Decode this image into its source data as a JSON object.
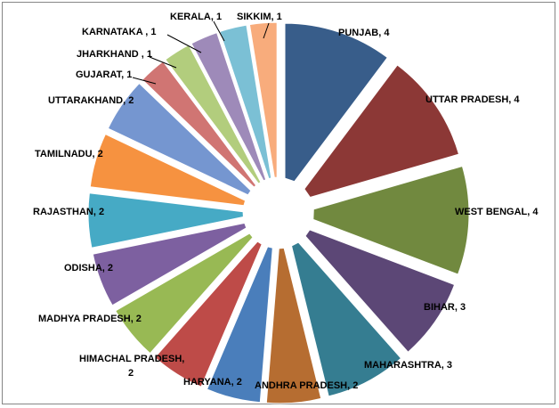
{
  "chart_data": {
    "type": "pie",
    "title": "",
    "legend": "none",
    "slices": [
      {
        "label": "PUNJAB, 4",
        "category": "PUNJAB",
        "value": 4,
        "color": "#385D8A"
      },
      {
        "label": "UTTAR PRADESH, 4",
        "category": "UTTAR PRADESH",
        "value": 4,
        "color": "#8C3836"
      },
      {
        "label": "WEST BENGAL, 4",
        "category": "WEST BENGAL",
        "value": 4,
        "color": "#71893F"
      },
      {
        "label": "BIHAR, 3",
        "category": "BIHAR",
        "value": 3,
        "color": "#5C4776"
      },
      {
        "label": "MAHARASHTRA, 3",
        "category": "MAHARASHTRA",
        "value": 3,
        "color": "#357D91"
      },
      {
        "label": "ANDHRA PRADESH, 2",
        "category": "ANDHRA PRADESH",
        "value": 2,
        "color": "#B66D31"
      },
      {
        "label": "HARYANA, 2",
        "category": "HARYANA",
        "value": 2,
        "color": "#4A7EBB"
      },
      {
        "label": "HIMACHAL PRADESH, 2",
        "category": "HIMACHAL PRADESH",
        "value": 2,
        "color": "#BE4B48"
      },
      {
        "label": "MADHYA PRADESH, 2",
        "category": "MADHYA PRADESH",
        "value": 2,
        "color": "#98B954"
      },
      {
        "label": "ODISHA, 2",
        "category": "ODISHA",
        "value": 2,
        "color": "#7D60A0"
      },
      {
        "label": "RAJASTHAN, 2",
        "category": "RAJASTHAN",
        "value": 2,
        "color": "#46AAC5"
      },
      {
        "label": "TAMILNADU, 2",
        "category": "TAMILNADU",
        "value": 2,
        "color": "#F69240"
      },
      {
        "label": "UTTARAKHAND, 2",
        "category": "UTTARAKHAND",
        "value": 2,
        "color": "#7596D0"
      },
      {
        "label": "GUJARAT, 1",
        "category": "GUJARAT",
        "value": 1,
        "color": "#D07573"
      },
      {
        "label": "JHARKHAND , 1",
        "category": "JHARKHAND",
        "value": 1,
        "color": "#B2CD7D"
      },
      {
        "label": "KARNATAKA , 1",
        "category": "KARNATAKA",
        "value": 1,
        "color": "#9E8AB9"
      },
      {
        "label": "KERALA, 1",
        "category": "KERALA",
        "value": 1,
        "color": "#7BC0D5"
      },
      {
        "label": "SIKKIM, 1",
        "category": "SIKKIM",
        "value": 1,
        "color": "#F8AC7C"
      }
    ]
  }
}
